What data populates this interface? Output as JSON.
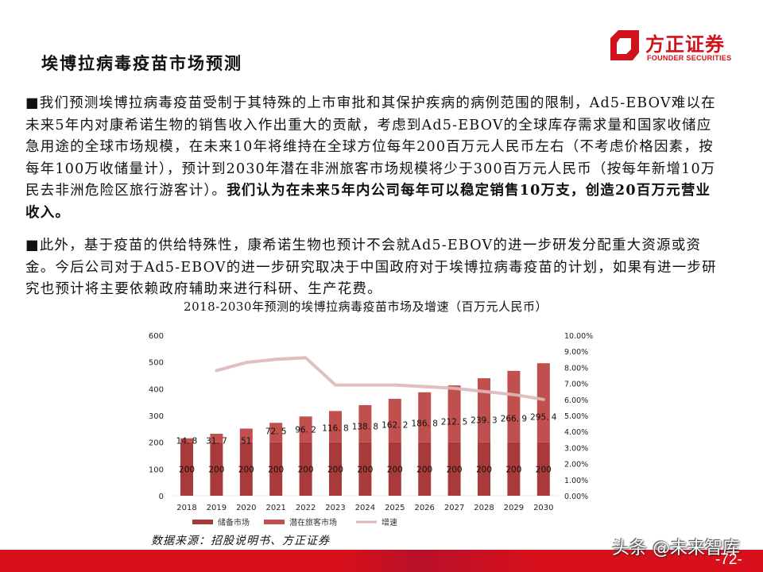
{
  "brand": {
    "name_cn": "方正证券",
    "name_en": "FOUNDER SECURITIES",
    "color": "#d0121b"
  },
  "page": {
    "title": "埃博拉病毒疫苗市场预测",
    "number": "-72-",
    "watermark": "头条 @未来智库"
  },
  "paragraphs": {
    "p1_normal": "■我们预测埃博拉病毒疫苗受制于其特殊的上市审批和其保护疾病的病例范围的限制，Ad5-EBOV难以在未来5年内对康希诺生物的销售收入作出重大的贡献，考虑到Ad5-EBOV的全球库存需求量和国家收储应急用途的全球市场规模，在未来10年将维持在全球方位每年200百万元人民币左右（不考虑价格因素，按每年100万收储量计），预计到2030年潜在非洲旅客市场规模将少于300百万元人民币（按每年新增10万民去非洲危险区旅行游客计）。",
    "p1_bold": "我们认为在未来5年内公司每年可以稳定销售10万支，创造20百万元营业收入。",
    "p2": "■此外，基于疫苗的供给特殊性，康希诺生物也预计不会就Ad5-EBOV的进一步研发分配重大资源或资金。今后公司对于Ad5-EBOV的进一步研究取决于中国政府对于埃博拉病毒疫苗的计划，如果有进一步研究也预计将主要依赖政府辅助来进行科研、生产花费。"
  },
  "source": "数据来源：招股说明书、方正证券",
  "chart_data": {
    "type": "bar",
    "stacked": true,
    "title": "2018-2030年预测的埃博拉病毒疫苗市场及增速（百万元人民币）",
    "categories": [
      "2018",
      "2019",
      "2020",
      "2021",
      "2022",
      "2023",
      "2024",
      "2025",
      "2026",
      "2027",
      "2028",
      "2029",
      "2030"
    ],
    "series": [
      {
        "name": "储备市场",
        "type": "bar",
        "axis": "left",
        "color": "#a93a3a",
        "values": [
          200,
          200,
          200,
          200,
          200,
          200,
          200,
          200,
          200,
          200,
          200,
          200,
          200
        ]
      },
      {
        "name": "潜在旅客市场",
        "type": "bar",
        "axis": "left",
        "color": "#c0504d",
        "values": [
          14.8,
          31.7,
          51,
          72.5,
          96.2,
          116.8,
          138.8,
          162.2,
          186.8,
          212.5,
          239.3,
          266.9,
          295.4
        ]
      },
      {
        "name": "增速",
        "type": "line",
        "axis": "right",
        "color": "#dcb8b8",
        "values": [
          null,
          0.078,
          0.083,
          0.085,
          0.086,
          0.069,
          0.069,
          0.069,
          0.068,
          0.067,
          0.065,
          0.063,
          0.06
        ]
      }
    ],
    "y_left": {
      "ticks": [
        "0",
        "100",
        "200",
        "300",
        "400",
        "500",
        "600"
      ],
      "range": [
        0,
        600
      ]
    },
    "y_right": {
      "ticks": [
        "0.00%",
        "1.00%",
        "2.00%",
        "3.00%",
        "4.00%",
        "5.00%",
        "6.00%",
        "7.00%",
        "8.00%",
        "9.00%",
        "10.00%"
      ],
      "range": [
        0,
        0.1
      ]
    },
    "legend": [
      "储备市场",
      "潜在旅客市场",
      "增速"
    ],
    "legend_position": "bottom",
    "grid": false
  }
}
